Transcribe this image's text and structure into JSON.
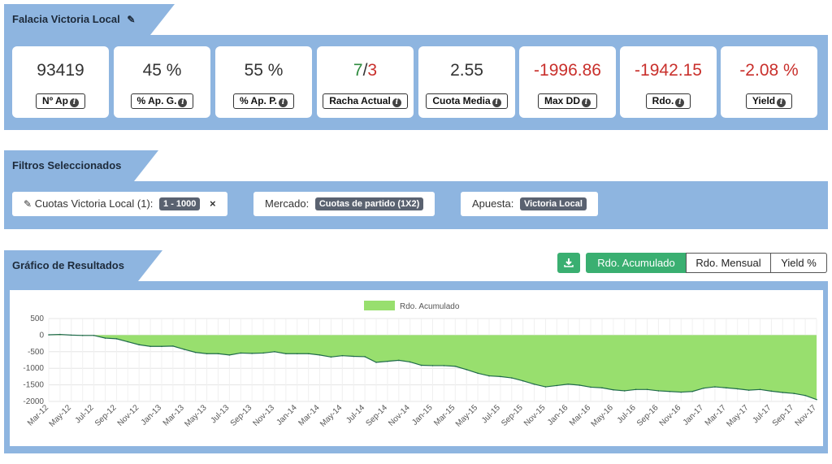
{
  "header": {
    "title": "Falacia Victoria Local"
  },
  "stats": [
    {
      "value": "93419",
      "label": "Nº Ap",
      "neg": false
    },
    {
      "value": "45 %",
      "label": "% Ap. G.",
      "neg": false
    },
    {
      "value": "55 %",
      "label": "% Ap. P.",
      "neg": false
    },
    {
      "value_a": "7",
      "sep": "/",
      "value_b": "3",
      "label": "Racha Actual"
    },
    {
      "value": "2.55",
      "label": "Cuota Media",
      "neg": false
    },
    {
      "value": "-1996.86",
      "label": "Max DD",
      "neg": true
    },
    {
      "value": "-1942.15",
      "label": "Rdo.",
      "neg": true
    },
    {
      "value": "-2.08 %",
      "label": "Yield",
      "neg": true
    }
  ],
  "filters": {
    "title": "Filtros Seleccionados",
    "items": [
      {
        "label": "Cuotas Victoria Local (1):",
        "tag": "1 - 1000",
        "remove": "×"
      },
      {
        "label": "Mercado:",
        "tag": "Cuotas de partido (1X2)"
      },
      {
        "label": "Apuesta:",
        "tag": "Victoria Local"
      }
    ]
  },
  "results": {
    "title": "Gráfico de Resultados",
    "buttons": [
      "Rdo. Acumulado",
      "Rdo. Mensual",
      "Yield %"
    ],
    "active": "Rdo. Acumulado"
  },
  "colors": {
    "panel": "#8eb5e0",
    "negative": "#c9302c",
    "green_fill": "#98df6e",
    "line": "#1f6b4a",
    "active_btn": "#3aaf71"
  },
  "icons": {
    "edit": "pencil-icon",
    "info": "info-circle-icon",
    "download": "download-icon",
    "remove": "close-icon"
  },
  "chart_data": {
    "type": "area",
    "legend": [
      "Rdo. Acumulado"
    ],
    "legend_position": "top-center",
    "ylim": [
      -2000,
      500
    ],
    "yticks": [
      500,
      0,
      -500,
      -1000,
      -1500,
      -2000
    ],
    "xticks": [
      "Mar-12",
      "May-12",
      "Jul-12",
      "Sep-12",
      "Nov-12",
      "Jan-13",
      "Mar-13",
      "May-13",
      "Jul-13",
      "Sep-13",
      "Nov-13",
      "Jan-14",
      "Mar-14",
      "May-14",
      "Jul-14",
      "Sep-14",
      "Nov-14",
      "Jan-15",
      "Mar-15",
      "May-15",
      "Jul-15",
      "Sep-15",
      "Nov-15",
      "Jan-16",
      "Mar-16",
      "May-16",
      "Jul-16",
      "Sep-16",
      "Nov-16",
      "Jan-17",
      "Mar-17",
      "May-17",
      "Jul-17",
      "Sep-17",
      "Nov-17"
    ],
    "grid": true,
    "series": [
      {
        "name": "Rdo. Acumulado",
        "x": [
          "Mar-12",
          "Apr-12",
          "May-12",
          "Jun-12",
          "Jul-12",
          "Aug-12",
          "Sep-12",
          "Oct-12",
          "Nov-12",
          "Dec-12",
          "Jan-13",
          "Feb-13",
          "Mar-13",
          "Apr-13",
          "May-13",
          "Jun-13",
          "Jul-13",
          "Aug-13",
          "Sep-13",
          "Oct-13",
          "Nov-13",
          "Dec-13",
          "Jan-14",
          "Feb-14",
          "Mar-14",
          "Apr-14",
          "May-14",
          "Jun-14",
          "Jul-14",
          "Aug-14",
          "Sep-14",
          "Oct-14",
          "Nov-14",
          "Dec-14",
          "Jan-15",
          "Feb-15",
          "Mar-15",
          "Apr-15",
          "May-15",
          "Jun-15",
          "Jul-15",
          "Aug-15",
          "Sep-15",
          "Oct-15",
          "Nov-15",
          "Dec-15",
          "Jan-16",
          "Feb-16",
          "Mar-16",
          "Apr-16",
          "May-16",
          "Jun-16",
          "Jul-16",
          "Aug-16",
          "Sep-16",
          "Oct-16",
          "Nov-16",
          "Dec-16",
          "Jan-17",
          "Feb-17",
          "Mar-17",
          "Apr-17",
          "May-17",
          "Jun-17",
          "Jul-17",
          "Aug-17",
          "Sep-17",
          "Oct-17",
          "Nov-17"
        ],
        "values": [
          10,
          20,
          0,
          -10,
          -10,
          -90,
          -110,
          -200,
          -290,
          -340,
          -340,
          -330,
          -430,
          -520,
          -560,
          -560,
          -600,
          -540,
          -550,
          -540,
          -500,
          -560,
          -560,
          -560,
          -600,
          -660,
          -620,
          -640,
          -650,
          -820,
          -790,
          -760,
          -810,
          -910,
          -920,
          -920,
          -940,
          -1040,
          -1150,
          -1230,
          -1250,
          -1290,
          -1380,
          -1480,
          -1560,
          -1520,
          -1480,
          -1510,
          -1570,
          -1590,
          -1650,
          -1680,
          -1640,
          -1640,
          -1680,
          -1700,
          -1720,
          -1700,
          -1600,
          -1560,
          -1590,
          -1620,
          -1660,
          -1640,
          -1690,
          -1730,
          -1760,
          -1820,
          -1942
        ]
      }
    ]
  }
}
